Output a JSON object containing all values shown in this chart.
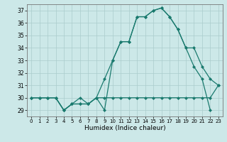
{
  "title": "",
  "xlabel": "Humidex (Indice chaleur)",
  "bg_color": "#cce8e8",
  "grid_color": "#aacccc",
  "line_color": "#1a7a6e",
  "xlim": [
    -0.5,
    23.5
  ],
  "ylim": [
    28.5,
    37.5
  ],
  "xticks": [
    0,
    1,
    2,
    3,
    4,
    5,
    6,
    7,
    8,
    9,
    10,
    11,
    12,
    13,
    14,
    15,
    16,
    17,
    18,
    19,
    20,
    21,
    22,
    23
  ],
  "yticks": [
    29,
    30,
    31,
    32,
    33,
    34,
    35,
    36,
    37
  ],
  "line1_x": [
    0,
    1,
    2,
    3,
    4,
    5,
    6,
    7,
    8,
    9,
    10,
    11,
    12,
    13,
    14,
    15,
    16,
    17,
    18,
    19,
    20,
    21,
    22,
    23
  ],
  "line1_y": [
    30,
    30,
    30,
    30,
    29,
    29.5,
    29.5,
    29.5,
    30,
    30,
    30,
    30,
    30,
    30,
    30,
    30,
    30,
    30,
    30,
    30,
    30,
    30,
    30,
    31
  ],
  "line2_x": [
    0,
    1,
    2,
    3,
    4,
    5,
    6,
    7,
    8,
    9,
    10,
    11,
    12,
    13,
    14,
    15,
    16,
    17,
    18,
    19,
    20,
    21,
    22
  ],
  "line2_y": [
    30,
    30,
    30,
    30,
    29,
    29.5,
    30,
    29.5,
    30,
    29,
    33,
    34.5,
    34.5,
    36.5,
    36.5,
    37,
    37.2,
    36.5,
    35.5,
    34,
    32.5,
    31.5,
    29
  ],
  "line3_x": [
    0,
    1,
    2,
    3,
    4,
    5,
    6,
    7,
    8,
    9,
    10,
    11,
    12,
    13,
    14,
    15,
    16,
    17,
    18,
    19,
    20,
    21,
    22,
    23
  ],
  "line3_y": [
    30,
    30,
    30,
    30,
    29,
    29.5,
    29.5,
    29.5,
    30,
    31.5,
    33,
    34.5,
    34.5,
    36.5,
    36.5,
    37,
    37.2,
    36.5,
    35.5,
    34,
    34,
    32.5,
    31.5,
    31
  ]
}
